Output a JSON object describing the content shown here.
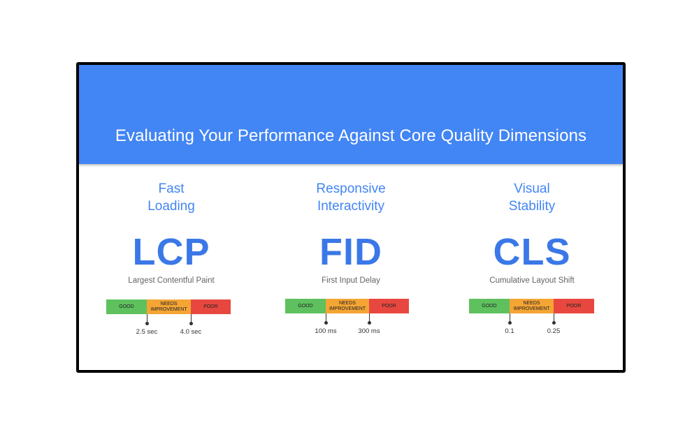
{
  "title": "Evaluating Your Performance Against Core Quality Dimensions",
  "metrics": [
    {
      "heading_line1": "Fast",
      "heading_line2": "Loading",
      "abbr": "LCP",
      "name": "Largest Contentful Paint",
      "scale": {
        "good": "GOOD",
        "needs_line1": "NEEDS",
        "needs_line2": "IMPROVEMENT",
        "poor": "POOR"
      },
      "thresholds": [
        "2.5 sec",
        "4.0 sec"
      ]
    },
    {
      "heading_line1": "Responsive",
      "heading_line2": "Interactivity",
      "abbr": "FID",
      "name": "First Input Delay",
      "scale": {
        "good": "GOOD",
        "needs_line1": "NEEDS",
        "needs_line2": "IMPROVEMENT",
        "poor": "POOR"
      },
      "thresholds": [
        "100 ms",
        "300 ms"
      ]
    },
    {
      "heading_line1": "Visual",
      "heading_line2": "Stability",
      "abbr": "CLS",
      "name": "Cumulative Layout Shift",
      "scale": {
        "good": "GOOD",
        "needs_line1": "NEEDS",
        "needs_line2": "IMPROVEMENT",
        "poor": "POOR"
      },
      "thresholds": [
        "0.1",
        "0.25"
      ]
    }
  ],
  "colors": {
    "banner": "#4285f4",
    "good": "#5ec15e",
    "needs_improvement": "#f4a534",
    "poor": "#e8473f"
  }
}
